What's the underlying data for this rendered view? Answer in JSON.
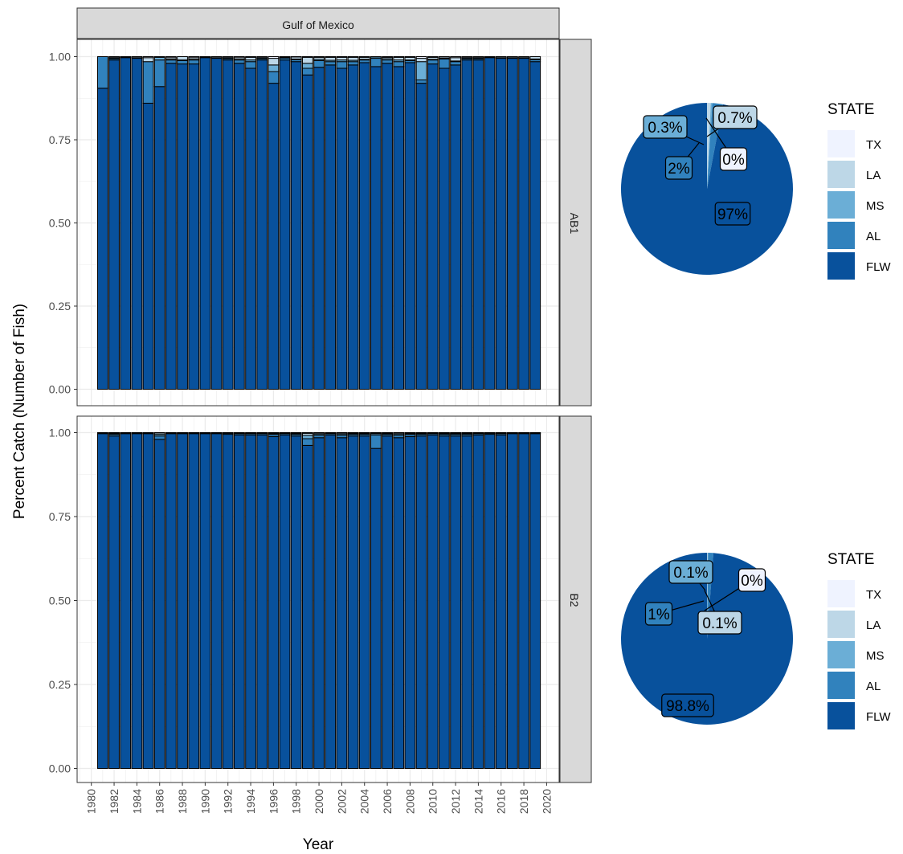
{
  "chart_data": [
    {
      "type": "bar",
      "stacked": true,
      "facet_title": "Gulf of Mexico",
      "panels": [
        "AB1",
        "B2"
      ],
      "xlabel": "Year",
      "ylabel": "Percent Catch (Number of Fish)",
      "ylim": [
        0,
        1
      ],
      "y_ticks": [
        "0.00",
        "0.25",
        "0.50",
        "0.75",
        "1.00"
      ],
      "x_ticks": [
        "1980",
        "1982",
        "1984",
        "1986",
        "1988",
        "1990",
        "1992",
        "1994",
        "1996",
        "1998",
        "2000",
        "2002",
        "2004",
        "2006",
        "2008",
        "2010",
        "2012",
        "2014",
        "2016",
        "2018",
        "2020"
      ],
      "stack_order": [
        "FLW",
        "AL",
        "MS",
        "LA",
        "TX"
      ],
      "years": [
        1981,
        1982,
        1983,
        1984,
        1985,
        1986,
        1987,
        1988,
        1989,
        1990,
        1991,
        1992,
        1993,
        1994,
        1995,
        1996,
        1997,
        1998,
        1999,
        2000,
        2001,
        2002,
        2003,
        2004,
        2005,
        2006,
        2007,
        2008,
        2009,
        2010,
        2011,
        2012,
        2013,
        2014,
        2015,
        2016,
        2017,
        2018,
        2019
      ],
      "series_by_panel": {
        "AB1": {
          "FLW": [
            0.905,
            0.99,
            0.997,
            0.995,
            0.86,
            0.91,
            0.98,
            0.978,
            0.978,
            0.997,
            0.995,
            0.99,
            0.98,
            0.965,
            0.99,
            0.92,
            0.99,
            0.985,
            0.945,
            0.968,
            0.975,
            0.965,
            0.975,
            0.982,
            0.97,
            0.98,
            0.97,
            0.982,
            0.92,
            0.978,
            0.965,
            0.975,
            0.99,
            0.99,
            0.997,
            0.995,
            0.995,
            0.995,
            0.985
          ],
          "AL": [
            0.095,
            0.004,
            0.002,
            0.002,
            0.125,
            0.08,
            0.01,
            0.01,
            0.012,
            0.002,
            0.002,
            0.004,
            0.01,
            0.02,
            0.004,
            0.035,
            0.006,
            0.006,
            0.02,
            0.02,
            0.01,
            0.02,
            0.01,
            0.008,
            0.025,
            0.01,
            0.015,
            0.006,
            0.01,
            0.012,
            0.028,
            0.01,
            0.004,
            0.004,
            0.002,
            0.002,
            0.002,
            0.002,
            0.006
          ],
          "MS": [
            0.0,
            0.002,
            0.0,
            0.0,
            0.0,
            0.008,
            0.002,
            0.002,
            0.002,
            0.0,
            0.0,
            0.002,
            0.002,
            0.005,
            0.002,
            0.02,
            0.002,
            0.002,
            0.015,
            0.004,
            0.004,
            0.005,
            0.004,
            0.002,
            0.004,
            0.004,
            0.005,
            0.002,
            0.055,
            0.002,
            0.002,
            0.002,
            0.002,
            0.002,
            0.0,
            0.0,
            0.0,
            0.0,
            0.002
          ],
          "LA": [
            0.0,
            0.003,
            0.001,
            0.003,
            0.012,
            0.002,
            0.005,
            0.01,
            0.005,
            0.001,
            0.003,
            0.003,
            0.005,
            0.008,
            0.003,
            0.02,
            0.002,
            0.006,
            0.018,
            0.006,
            0.009,
            0.008,
            0.009,
            0.006,
            0.001,
            0.004,
            0.008,
            0.008,
            0.01,
            0.006,
            0.004,
            0.01,
            0.003,
            0.003,
            0.001,
            0.003,
            0.003,
            0.003,
            0.007
          ],
          "TX": [
            0.0,
            0.001,
            0.0,
            0.0,
            0.003,
            0.0,
            0.003,
            0.0,
            0.003,
            0.0,
            0.0,
            0.001,
            0.003,
            0.002,
            0.001,
            0.005,
            0.0,
            0.001,
            0.002,
            0.002,
            0.002,
            0.002,
            0.002,
            0.002,
            0.0,
            0.002,
            0.002,
            0.002,
            0.005,
            0.002,
            0.001,
            0.003,
            0.001,
            0.001,
            0.0,
            0.0,
            0.0,
            0.0,
            0.0
          ]
        },
        "B2": {
          "FLW": [
            0.997,
            0.99,
            0.997,
            0.997,
            0.997,
            0.98,
            0.997,
            0.997,
            0.997,
            0.997,
            0.997,
            0.995,
            0.993,
            0.993,
            0.993,
            0.988,
            0.993,
            0.99,
            0.962,
            0.985,
            0.993,
            0.985,
            0.99,
            0.99,
            0.953,
            0.99,
            0.985,
            0.988,
            0.99,
            0.993,
            0.99,
            0.99,
            0.99,
            0.993,
            0.995,
            0.993,
            0.997,
            0.997,
            0.997
          ],
          "AL": [
            0.002,
            0.005,
            0.002,
            0.002,
            0.002,
            0.01,
            0.002,
            0.002,
            0.002,
            0.002,
            0.002,
            0.003,
            0.004,
            0.004,
            0.004,
            0.006,
            0.004,
            0.005,
            0.02,
            0.007,
            0.004,
            0.007,
            0.005,
            0.005,
            0.04,
            0.005,
            0.007,
            0.006,
            0.005,
            0.004,
            0.005,
            0.005,
            0.005,
            0.004,
            0.003,
            0.004,
            0.002,
            0.002,
            0.002
          ],
          "MS": [
            0.0,
            0.002,
            0.0,
            0.0,
            0.0,
            0.005,
            0.0,
            0.0,
            0.0,
            0.0,
            0.0,
            0.001,
            0.001,
            0.001,
            0.001,
            0.003,
            0.001,
            0.002,
            0.01,
            0.004,
            0.001,
            0.004,
            0.002,
            0.002,
            0.004,
            0.002,
            0.004,
            0.003,
            0.002,
            0.001,
            0.002,
            0.002,
            0.002,
            0.001,
            0.001,
            0.001,
            0.0,
            0.0,
            0.0
          ],
          "LA": [
            0.001,
            0.002,
            0.001,
            0.001,
            0.001,
            0.004,
            0.001,
            0.001,
            0.001,
            0.001,
            0.001,
            0.001,
            0.001,
            0.001,
            0.001,
            0.002,
            0.001,
            0.002,
            0.006,
            0.003,
            0.001,
            0.003,
            0.002,
            0.002,
            0.002,
            0.002,
            0.003,
            0.002,
            0.002,
            0.001,
            0.002,
            0.002,
            0.002,
            0.001,
            0.001,
            0.001,
            0.001,
            0.001,
            0.001
          ],
          "TX": [
            0.0,
            0.001,
            0.0,
            0.0,
            0.0,
            0.001,
            0.0,
            0.0,
            0.0,
            0.0,
            0.0,
            0.0,
            0.001,
            0.001,
            0.001,
            0.001,
            0.001,
            0.001,
            0.002,
            0.001,
            0.001,
            0.001,
            0.001,
            0.001,
            0.001,
            0.001,
            0.001,
            0.001,
            0.001,
            0.001,
            0.001,
            0.001,
            0.001,
            0.001,
            0.0,
            0.001,
            0.0,
            0.0,
            0.0
          ]
        }
      }
    },
    {
      "type": "pie",
      "panel": "AB1",
      "legend_title": "STATE",
      "legend_position": "right",
      "slices": [
        {
          "name": "TX",
          "value": 0.0,
          "label": "0%"
        },
        {
          "name": "LA",
          "value": 0.7,
          "label": "0.7%"
        },
        {
          "name": "MS",
          "value": 0.3,
          "label": "0.3%"
        },
        {
          "name": "AL",
          "value": 2.0,
          "label": "2%"
        },
        {
          "name": "FLW",
          "value": 97.0,
          "label": "97%"
        }
      ]
    },
    {
      "type": "pie",
      "panel": "B2",
      "legend_title": "STATE",
      "legend_position": "right",
      "slices": [
        {
          "name": "TX",
          "value": 0.0,
          "label": "0%"
        },
        {
          "name": "LA",
          "value": 0.1,
          "label": "0.1%"
        },
        {
          "name": "MS",
          "value": 0.1,
          "label": "0.1%"
        },
        {
          "name": "AL",
          "value": 1.0,
          "label": "1%"
        },
        {
          "name": "FLW",
          "value": 98.8,
          "label": "98.8%"
        }
      ]
    }
  ],
  "colors": {
    "TX": "#eff3ff",
    "LA": "#bdd7e7",
    "MS": "#6baed6",
    "AL": "#3182bd",
    "FLW": "#08519c",
    "strip_fill": "#d9d9d9",
    "grid": "#ebebeb"
  },
  "legend": {
    "title": "STATE",
    "items": [
      "TX",
      "LA",
      "MS",
      "AL",
      "FLW"
    ]
  }
}
